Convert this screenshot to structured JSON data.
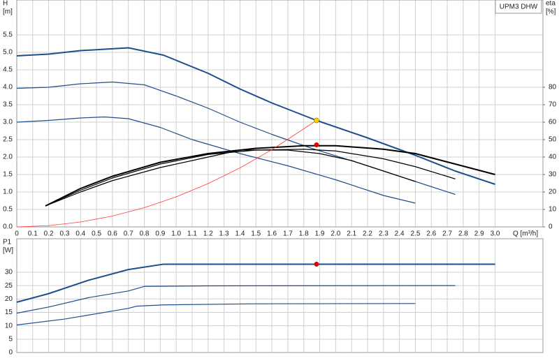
{
  "chart_data": [
    {
      "type": "line",
      "legend_label": "UPM3 DHW",
      "ylabel": [
        "H",
        "[m]"
      ],
      "y2label": [
        "eta",
        "[%]"
      ],
      "xlabel": "Q [m³/h]",
      "xlim": [
        0,
        3.3
      ],
      "ylim": [
        0,
        6.5
      ],
      "y2lim": [
        0,
        130
      ],
      "grid": true,
      "xtick_labels": true,
      "xticks": [
        0,
        0.1,
        0.2,
        0.3,
        0.4,
        0.5,
        0.6,
        0.7,
        0.8,
        0.9,
        {
          "value": 1,
          "label": "1.0"
        },
        1.1,
        1.2,
        1.3,
        1.4,
        1.5,
        1.6,
        1.7,
        1.8,
        1.9,
        {
          "value": 2,
          "label": "2.0"
        },
        2.1,
        2.2,
        2.3,
        2.4,
        2.5,
        2.6,
        2.7,
        2.8,
        2.9,
        {
          "value": 3,
          "label": "3.0"
        }
      ],
      "yticks": [
        {
          "value": 0,
          "label": "0.0"
        },
        0.5,
        {
          "value": 1,
          "label": "1.0"
        },
        1.5,
        {
          "value": 2,
          "label": "2.0"
        },
        2.5,
        {
          "value": 3,
          "label": "3.0"
        },
        3.5,
        {
          "value": 4,
          "label": "4.0"
        },
        4.5,
        {
          "value": 5,
          "label": "5.0"
        },
        5.5
      ],
      "y2ticks": [
        0,
        10,
        20,
        30,
        40,
        50,
        60,
        70,
        80
      ],
      "series": [
        {
          "color": "#1f4e8c",
          "width": 2,
          "x": [
            0,
            0.2,
            0.4,
            0.7,
            0.92,
            1.2,
            1.4,
            1.6,
            1.88,
            2.2,
            2.5,
            2.75,
            3.0
          ],
          "values": [
            4.9,
            4.95,
            5.05,
            5.13,
            4.92,
            4.4,
            3.95,
            3.55,
            3.05,
            2.55,
            2.05,
            1.6,
            1.22
          ]
        },
        {
          "color": "#1f4e8c",
          "width": 1.2,
          "x": [
            0,
            0.2,
            0.4,
            0.6,
            0.8,
            1.0,
            1.2,
            1.4,
            1.6,
            1.85,
            2.2,
            2.5,
            2.75
          ],
          "values": [
            3.97,
            4.0,
            4.1,
            4.15,
            4.07,
            3.75,
            3.4,
            3.0,
            2.65,
            2.25,
            1.75,
            1.3,
            0.93
          ]
        },
        {
          "color": "#1f4e8c",
          "width": 1.2,
          "x": [
            0,
            0.2,
            0.4,
            0.55,
            0.7,
            0.9,
            1.1,
            1.4,
            1.7,
            2.0,
            2.3,
            2.5
          ],
          "values": [
            3.0,
            3.05,
            3.12,
            3.15,
            3.1,
            2.85,
            2.5,
            2.1,
            1.75,
            1.35,
            0.9,
            0.68
          ]
        },
        {
          "color": "#000000",
          "width": 2,
          "axis": "y2",
          "x": [
            0.18,
            0.4,
            0.6,
            0.9,
            1.2,
            1.5,
            1.8,
            2.0,
            2.3,
            2.5,
            2.75,
            3.0
          ],
          "values": [
            12,
            22,
            29,
            37,
            42,
            45,
            46.5,
            46.5,
            44.5,
            42,
            36,
            30
          ]
        },
        {
          "color": "#000000",
          "width": 1.2,
          "axis": "y2",
          "x": [
            0.18,
            0.4,
            0.6,
            0.9,
            1.2,
            1.5,
            1.8,
            2.0,
            2.3,
            2.5,
            2.75
          ],
          "values": [
            12,
            21,
            28,
            36,
            41.5,
            44,
            44.5,
            43.5,
            39,
            34.5,
            27.5
          ]
        },
        {
          "color": "#000000",
          "width": 1.2,
          "axis": "y2",
          "x": [
            0.18,
            0.4,
            0.6,
            0.9,
            1.2,
            1.4,
            1.7,
            1.9,
            2.1,
            2.3,
            2.5
          ],
          "values": [
            12,
            20,
            26.5,
            34,
            40,
            44,
            44,
            42,
            38,
            32,
            26
          ]
        },
        {
          "color": "#ff3b3b",
          "width": 0.8,
          "x": [
            0,
            0.2,
            0.4,
            0.6,
            0.8,
            1.0,
            1.2,
            1.4,
            1.6,
            1.88
          ],
          "values": [
            0,
            0.035,
            0.14,
            0.31,
            0.55,
            0.86,
            1.24,
            1.69,
            2.21,
            3.05
          ]
        },
        {
          "color": "#ffcc00",
          "marker": true,
          "x": [
            1.88
          ],
          "values": [
            3.05
          ]
        },
        {
          "color": "#e00000",
          "marker": true,
          "axis": "y2",
          "x": [
            1.88
          ],
          "values": [
            47
          ]
        }
      ]
    },
    {
      "type": "line",
      "ylabel": [
        "P1",
        "[W]"
      ],
      "xlim": [
        0,
        3.3
      ],
      "ylim": [
        0,
        42.5
      ],
      "grid": true,
      "xtick_labels": false,
      "xticks": [
        0,
        0.1,
        0.2,
        0.3,
        0.4,
        0.5,
        0.6,
        0.7,
        0.8,
        0.9,
        1,
        1.1,
        1.2,
        1.3,
        1.4,
        1.5,
        1.6,
        1.7,
        1.8,
        1.9,
        2,
        2.1,
        2.2,
        2.3,
        2.4,
        2.5,
        2.6,
        2.7,
        2.8,
        2.9,
        3
      ],
      "yticks": [
        0,
        5,
        10,
        15,
        20,
        25,
        30
      ],
      "series": [
        {
          "color": "#1f4e8c",
          "width": 2,
          "x": [
            0,
            0.2,
            0.45,
            0.7,
            0.92,
            3.0
          ],
          "values": [
            18.8,
            22,
            27,
            31,
            33,
            33
          ]
        },
        {
          "color": "#1f4e8c",
          "width": 1.2,
          "x": [
            0,
            0.2,
            0.45,
            0.7,
            0.8,
            1.2,
            2.75
          ],
          "values": [
            14.7,
            17,
            20.5,
            23,
            24.7,
            24.9,
            25
          ]
        },
        {
          "color": "#1f4e8c",
          "width": 1.2,
          "x": [
            0,
            0.3,
            0.6,
            0.7,
            0.75,
            0.92,
            1.5,
            2.5
          ],
          "values": [
            10.3,
            12.5,
            15.5,
            16.5,
            17.3,
            17.8,
            18.2,
            18.3
          ]
        },
        {
          "color": "#e00000",
          "marker": true,
          "x": [
            1.88
          ],
          "values": [
            33
          ]
        }
      ]
    }
  ]
}
